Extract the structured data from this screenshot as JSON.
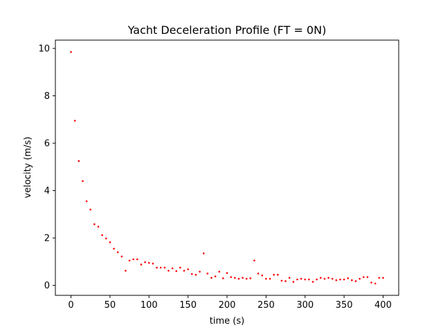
{
  "chart_data": {
    "type": "scatter",
    "title": "Yacht Deceleration Profile (FT = 0N)",
    "xlabel": "time (s)",
    "ylabel": "velocity (m/s)",
    "xlim": [
      -20,
      420
    ],
    "ylim": [
      -0.42,
      10.35
    ],
    "xticks": [
      0,
      50,
      100,
      150,
      200,
      250,
      300,
      350,
      400
    ],
    "yticks": [
      0,
      2,
      4,
      6,
      8,
      10
    ],
    "grid": false,
    "marker_color": "#ff0000",
    "series": [
      {
        "x": [
          0,
          5,
          10,
          15,
          20,
          25,
          30,
          35,
          40,
          45,
          50,
          55,
          60,
          65,
          70,
          75,
          80,
          85,
          90,
          95,
          100,
          105,
          110,
          115,
          120,
          125,
          130,
          135,
          140,
          145,
          150,
          155,
          160,
          165,
          170,
          175,
          180,
          185,
          190,
          195,
          200,
          205,
          210,
          215,
          220,
          225,
          230,
          235,
          240,
          245,
          250,
          255,
          260,
          265,
          270,
          275,
          280,
          285,
          290,
          295,
          300,
          305,
          310,
          315,
          320,
          325,
          330,
          335,
          340,
          345,
          350,
          355,
          360,
          365,
          370,
          375,
          380,
          385,
          390,
          395,
          400
        ],
        "y": [
          9.85,
          6.95,
          5.25,
          4.4,
          3.55,
          3.2,
          2.58,
          2.48,
          2.12,
          1.98,
          1.82,
          1.55,
          1.4,
          1.22,
          0.62,
          1.05,
          1.1,
          1.1,
          0.88,
          0.98,
          0.95,
          0.92,
          0.75,
          0.75,
          0.75,
          0.62,
          0.72,
          0.6,
          0.75,
          0.62,
          0.68,
          0.48,
          0.45,
          0.58,
          1.35,
          0.5,
          0.32,
          0.38,
          0.58,
          0.3,
          0.52,
          0.35,
          0.32,
          0.28,
          0.32,
          0.28,
          0.3,
          1.05,
          0.5,
          0.42,
          0.28,
          0.28,
          0.45,
          0.45,
          0.2,
          0.18,
          0.32,
          0.15,
          0.25,
          0.28,
          0.25,
          0.25,
          0.15,
          0.25,
          0.32,
          0.28,
          0.32,
          0.28,
          0.22,
          0.25,
          0.25,
          0.3,
          0.22,
          0.18,
          0.28,
          0.35,
          0.35,
          0.12,
          0.08,
          0.32,
          0.32
        ]
      }
    ]
  }
}
